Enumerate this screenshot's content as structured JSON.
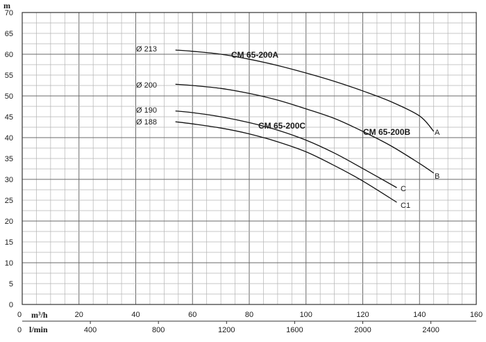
{
  "chart_data": {
    "type": "line",
    "y_unit": "m",
    "x_unit": "m³/h",
    "x2_unit": "l/min",
    "xlim": [
      0,
      160
    ],
    "ylim": [
      0,
      70
    ],
    "x_ticks": [
      "0",
      "20",
      "40",
      "60",
      "80",
      "100",
      "120",
      "140",
      "160"
    ],
    "y_ticks": [
      "0",
      "5",
      "10",
      "15",
      "20",
      "25",
      "30",
      "35",
      "40",
      "45",
      "50",
      "55",
      "60",
      "65",
      "70"
    ],
    "x2_ticks": [
      "0",
      "400",
      "800",
      "1200",
      "1600",
      "2000",
      "2400"
    ],
    "grid": true,
    "series": [
      {
        "name": "A",
        "diameter": "Ø 213",
        "x": [
          54,
          60,
          70,
          80,
          90,
          100,
          110,
          120,
          130,
          140,
          145
        ],
        "values": [
          61.0,
          60.7,
          60.0,
          58.8,
          57.3,
          55.5,
          53.5,
          51.2,
          48.6,
          45.2,
          41.5
        ]
      },
      {
        "name": "B",
        "diameter": "Ø 200",
        "x": [
          54,
          60,
          70,
          80,
          90,
          100,
          110,
          120,
          130,
          140,
          145
        ],
        "values": [
          52.8,
          52.5,
          51.8,
          50.6,
          49.0,
          46.9,
          44.6,
          41.5,
          38.0,
          33.8,
          31.5
        ]
      },
      {
        "name": "C",
        "diameter": "Ø 190",
        "x": [
          54,
          60,
          70,
          80,
          90,
          100,
          110,
          120,
          132
        ],
        "values": [
          46.4,
          46.0,
          45.0,
          43.6,
          41.8,
          39.4,
          36.3,
          32.6,
          28.0
        ]
      },
      {
        "name": "C1",
        "diameter": "Ø 188",
        "x": [
          54,
          60,
          70,
          80,
          90,
          100,
          110,
          120,
          132
        ],
        "values": [
          43.8,
          43.3,
          42.3,
          40.9,
          39.0,
          36.6,
          33.3,
          29.6,
          24.5
        ]
      }
    ],
    "annotations": [
      "CM 65-200A",
      "CM 65-200B",
      "CM 65-200C"
    ]
  }
}
